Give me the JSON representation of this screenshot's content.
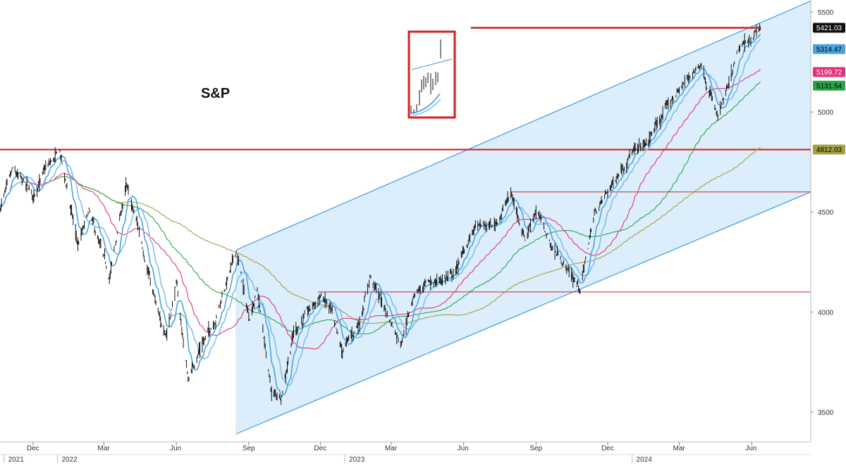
{
  "chart_data": {
    "type": "line",
    "title": "S&P",
    "ylim": [
      3350,
      5560
    ],
    "y_ticks": [
      3500,
      4000,
      4500,
      5000,
      5500
    ],
    "x_range": [
      "2021-10-20",
      "2024-08-15"
    ],
    "month_ticks": [
      {
        "label": "Dec",
        "date": "2021-12-01"
      },
      {
        "label": "Mar",
        "date": "2022-03-01"
      },
      {
        "label": "Jun",
        "date": "2022-06-01"
      },
      {
        "label": "Sep",
        "date": "2022-09-01"
      },
      {
        "label": "Dec",
        "date": "2022-12-01"
      },
      {
        "label": "Mar",
        "date": "2023-03-01"
      },
      {
        "label": "Jun",
        "date": "2023-06-01"
      },
      {
        "label": "Sep",
        "date": "2023-09-01"
      },
      {
        "label": "Dec",
        "date": "2023-12-01"
      },
      {
        "label": "Mar",
        "date": "2024-03-01"
      },
      {
        "label": "Jun",
        "date": "2024-06-01"
      }
    ],
    "year_ticks": [
      {
        "label": "2021",
        "date": "2021-10-25"
      },
      {
        "label": "2022",
        "date": "2022-01-01"
      },
      {
        "label": "2023",
        "date": "2023-01-01"
      },
      {
        "label": "2024",
        "date": "2024-01-01"
      }
    ],
    "price_path": [
      [
        "2021-10-20",
        4520
      ],
      [
        "2021-11-05",
        4700
      ],
      [
        "2021-11-20",
        4640
      ],
      [
        "2021-12-01",
        4580
      ],
      [
        "2021-12-15",
        4700
      ],
      [
        "2022-01-04",
        4800
      ],
      [
        "2022-01-27",
        4330
      ],
      [
        "2022-02-10",
        4500
      ],
      [
        "2022-03-08",
        4170
      ],
      [
        "2022-03-29",
        4630
      ],
      [
        "2022-04-15",
        4400
      ],
      [
        "2022-05-12",
        3930
      ],
      [
        "2022-05-20",
        3900
      ],
      [
        "2022-06-01",
        4140
      ],
      [
        "2022-06-16",
        3660
      ],
      [
        "2022-07-01",
        3820
      ],
      [
        "2022-07-20",
        3960
      ],
      [
        "2022-08-16",
        4305
      ],
      [
        "2022-09-01",
        3970
      ],
      [
        "2022-09-12",
        4110
      ],
      [
        "2022-09-30",
        3590
      ],
      [
        "2022-10-12",
        3577
      ],
      [
        "2022-10-28",
        3900
      ],
      [
        "2022-11-20",
        4020
      ],
      [
        "2022-12-01",
        4080
      ],
      [
        "2022-12-13",
        4020
      ],
      [
        "2022-12-28",
        3800
      ],
      [
        "2023-01-20",
        3950
      ],
      [
        "2023-02-02",
        4180
      ],
      [
        "2023-02-25",
        3980
      ],
      [
        "2023-03-13",
        3850
      ],
      [
        "2023-04-01",
        4110
      ],
      [
        "2023-04-20",
        4140
      ],
      [
        "2023-05-20",
        4190
      ],
      [
        "2023-06-15",
        4425
      ],
      [
        "2023-07-10",
        4430
      ],
      [
        "2023-07-31",
        4590
      ],
      [
        "2023-08-18",
        4370
      ],
      [
        "2023-09-01",
        4515
      ],
      [
        "2023-09-20",
        4330
      ],
      [
        "2023-10-03",
        4260
      ],
      [
        "2023-10-27",
        4117
      ],
      [
        "2023-11-14",
        4490
      ],
      [
        "2023-12-01",
        4600
      ],
      [
        "2023-12-28",
        4785
      ],
      [
        "2024-01-19",
        4840
      ],
      [
        "2024-02-15",
        5030
      ],
      [
        "2024-03-28",
        5250
      ],
      [
        "2024-04-19",
        4967
      ],
      [
        "2024-05-03",
        5130
      ],
      [
        "2024-05-15",
        5300
      ],
      [
        "2024-06-12",
        5421
      ]
    ],
    "ma_color_by_period": {
      "10": "#4aa3df",
      "20": "#7cc0ee",
      "50": "#e3337b",
      "100": "#2aa448",
      "200": "#a3a043"
    },
    "series": [
      {
        "period": 10,
        "color": "#4aa3df",
        "last": "5314.47"
      },
      {
        "period": 50,
        "color": "#e3337b",
        "last": "5199.72"
      },
      {
        "period": 100,
        "color": "#2aa448",
        "last": "5131.54"
      },
      {
        "period": 200,
        "color": "#a3a043"
      }
    ],
    "channel": {
      "color": "#3f9be4",
      "fill": "#dceefb",
      "start": [
        "2022-08-16",
        4310
      ],
      "end": [
        "2024-08-15",
        5555
      ],
      "lower_start": [
        "2022-08-16",
        3390
      ],
      "lower_end": [
        "2024-08-15",
        4600
      ]
    },
    "horizontal_lines": [
      {
        "value": 4812,
        "from": "2021-10-20",
        "to": "2024-08-15",
        "color": "#d42020",
        "width": 2.2
      },
      {
        "value": 4600,
        "from": "2023-07-31",
        "to": "2024-08-15",
        "color": "#d42020",
        "width": 1
      },
      {
        "value": 4100,
        "from": "2022-11-28",
        "to": "2024-08-15",
        "color": "#d42020",
        "width": 1
      }
    ],
    "inset_line": {
      "value": 5421,
      "from": "2023-06-10",
      "to": "2024-06-12",
      "color": "#d42020",
      "width": 2.5
    },
    "price_labels": [
      {
        "text": "5421.03",
        "bg": "#111111",
        "fg": "#ffffff"
      },
      {
        "text": "5314.47",
        "bg": "#4aa3df",
        "fg": "#000000"
      },
      {
        "text": "5199.72",
        "bg": "#e3337b",
        "fg": "#ffffff"
      },
      {
        "text": "5131.54",
        "bg": "#2aa448",
        "fg": "#000000"
      },
      {
        "text": "4812.03",
        "bg": "#a3a043",
        "fg": "#000000"
      }
    ]
  }
}
